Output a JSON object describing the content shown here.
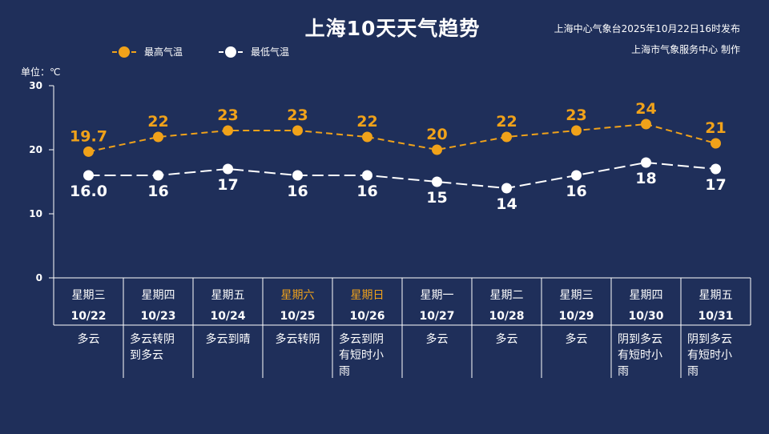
{
  "title": "上海10天天气趋势",
  "source": "上海中心气象台2025年10月22日16时发布",
  "maker": "上海市气象服务中心 制作",
  "unit_label": "单位：℃",
  "colors": {
    "background": "#1f2f5a",
    "high": "#f0a21a",
    "low": "#ffffff",
    "weekend": "#f0a21a",
    "grid": "#ffffff"
  },
  "chart_data": {
    "type": "line",
    "ylim": [
      0,
      30
    ],
    "yticks": [
      0,
      10,
      20,
      30
    ],
    "legend_position": "top-left",
    "categories": [
      "10/22",
      "10/23",
      "10/24",
      "10/25",
      "10/26",
      "10/27",
      "10/28",
      "10/29",
      "10/30",
      "10/31"
    ],
    "weekdays": [
      "星期三",
      "星期四",
      "星期五",
      "星期六",
      "星期日",
      "星期一",
      "星期二",
      "星期三",
      "星期四",
      "星期五"
    ],
    "weekend_flags": [
      false,
      false,
      false,
      true,
      true,
      false,
      false,
      false,
      false,
      false
    ],
    "weather": [
      [
        "多云"
      ],
      [
        "多云转阴",
        "到多云"
      ],
      [
        "多云到晴"
      ],
      [
        "多云转阴"
      ],
      [
        "多云到阴",
        "有短时小",
        "雨"
      ],
      [
        "多云"
      ],
      [
        "多云"
      ],
      [
        "多云"
      ],
      [
        "阴到多云",
        "有短时小",
        "雨"
      ],
      [
        "阴到多云",
        "有短时小",
        "雨"
      ]
    ],
    "series": [
      {
        "name": "最高气温",
        "values": [
          19.7,
          22,
          23,
          23,
          22,
          20,
          22,
          23,
          24,
          21
        ],
        "labels": [
          "19.7",
          "22",
          "23",
          "23",
          "22",
          "20",
          "22",
          "23",
          "24",
          "21"
        ]
      },
      {
        "name": "最低气温",
        "values": [
          16.0,
          16,
          17,
          16,
          16,
          15,
          14,
          16,
          18,
          17
        ],
        "labels": [
          "16.0",
          "16",
          "17",
          "16",
          "16",
          "15",
          "14",
          "16",
          "18",
          "17"
        ]
      }
    ]
  }
}
